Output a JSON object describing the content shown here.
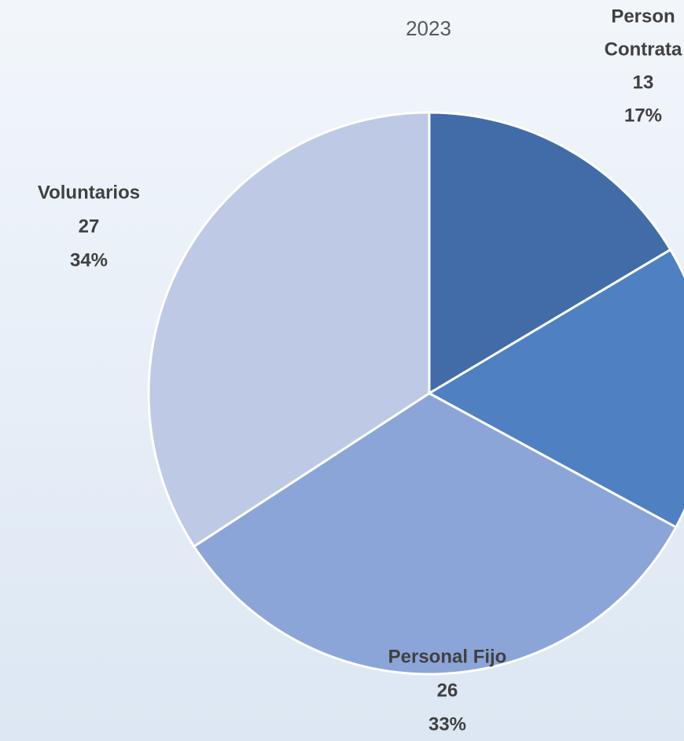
{
  "chart_data": {
    "type": "pie",
    "title": "2023",
    "categories": [
      [
        "Person",
        "Contrata"
      ],
      null,
      [
        "Personal Fijo"
      ],
      [
        "Voluntarios"
      ]
    ],
    "values": [
      13,
      13,
      26,
      27
    ],
    "percent_labels": [
      "17%",
      null,
      "33%",
      "34%"
    ],
    "colors": [
      "#416ca8",
      "#4f81c2",
      "#8ca5d8",
      "#bec9e5"
    ]
  }
}
